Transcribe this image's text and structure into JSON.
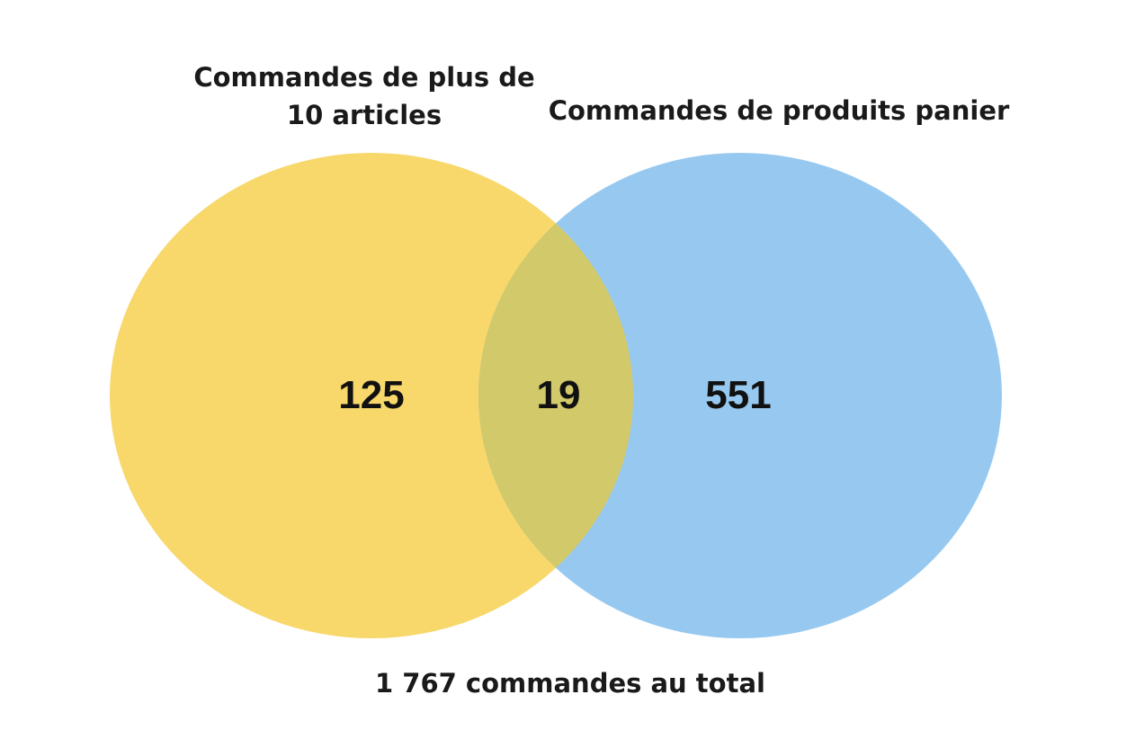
{
  "venn": {
    "set_a": {
      "label_line1": "Commandes de plus de",
      "label_line2": "10 articles",
      "only_count": "125",
      "color": "#f8d86b"
    },
    "set_b": {
      "label": "Commandes de produits panier",
      "only_count": "551",
      "color": "#97c9f0"
    },
    "intersection": {
      "count": "19",
      "color": "#d2c96a"
    },
    "total": "1 767 commandes au total"
  }
}
